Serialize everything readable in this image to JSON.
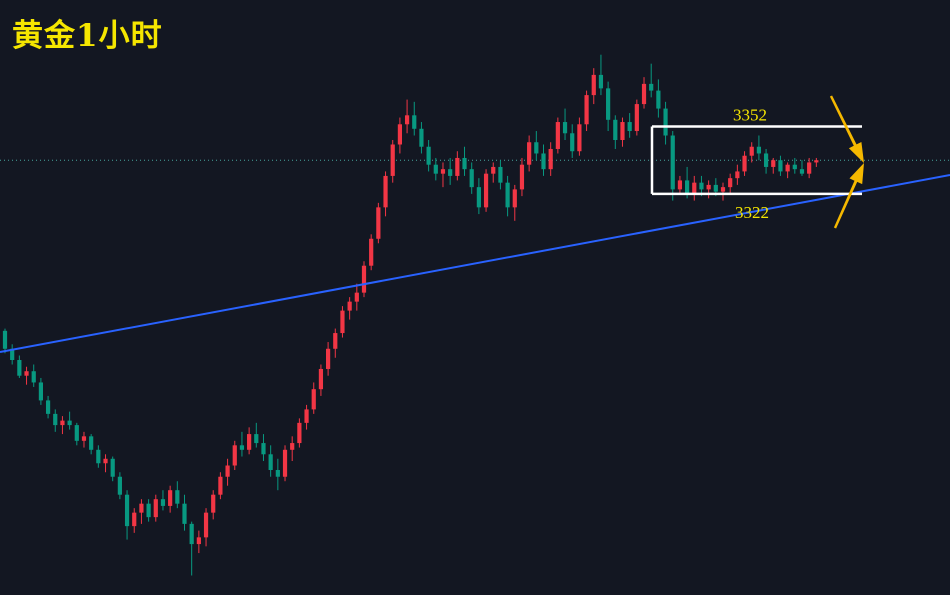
{
  "chart_data": {
    "type": "candlestick",
    "title": "黄金1小时",
    "range": {
      "upper": 3352,
      "lower": 3322,
      "upper_label": "3352",
      "lower_label": "3322"
    },
    "candle_ohlc": [
      [
        3261,
        3262,
        3251,
        3253
      ],
      [
        3253,
        3255,
        3246,
        3248
      ],
      [
        3248,
        3250,
        3240,
        3241
      ],
      [
        3241,
        3245,
        3237,
        3243
      ],
      [
        3243,
        3246,
        3236,
        3238
      ],
      [
        3238,
        3240,
        3228,
        3230
      ],
      [
        3230,
        3232,
        3222,
        3224
      ],
      [
        3224,
        3226,
        3216,
        3219
      ],
      [
        3219,
        3223,
        3215,
        3221
      ],
      [
        3221,
        3225,
        3217,
        3219
      ],
      [
        3219,
        3220,
        3210,
        3212
      ],
      [
        3212,
        3216,
        3209,
        3214
      ],
      [
        3214,
        3215,
        3206,
        3208
      ],
      [
        3208,
        3210,
        3200,
        3202
      ],
      [
        3202,
        3206,
        3198,
        3204
      ],
      [
        3204,
        3205,
        3194,
        3196
      ],
      [
        3196,
        3198,
        3186,
        3188
      ],
      [
        3188,
        3190,
        3168,
        3174
      ],
      [
        3174,
        3182,
        3171,
        3180
      ],
      [
        3180,
        3186,
        3175,
        3184
      ],
      [
        3184,
        3186,
        3176,
        3178
      ],
      [
        3178,
        3188,
        3176,
        3186
      ],
      [
        3186,
        3190,
        3181,
        3183
      ],
      [
        3183,
        3192,
        3180,
        3190
      ],
      [
        3190,
        3194,
        3182,
        3184
      ],
      [
        3184,
        3188,
        3172,
        3175
      ],
      [
        3175,
        3176,
        3152,
        3166
      ],
      [
        3166,
        3172,
        3162,
        3169
      ],
      [
        3169,
        3182,
        3165,
        3180
      ],
      [
        3180,
        3190,
        3177,
        3188
      ],
      [
        3188,
        3198,
        3186,
        3196
      ],
      [
        3196,
        3204,
        3192,
        3201
      ],
      [
        3201,
        3212,
        3199,
        3210
      ],
      [
        3210,
        3216,
        3205,
        3208
      ],
      [
        3208,
        3218,
        3206,
        3215
      ],
      [
        3215,
        3220,
        3209,
        3211
      ],
      [
        3211,
        3215,
        3203,
        3206
      ],
      [
        3206,
        3210,
        3196,
        3199
      ],
      [
        3199,
        3204,
        3190,
        3196
      ],
      [
        3196,
        3210,
        3194,
        3208
      ],
      [
        3208,
        3214,
        3203,
        3211
      ],
      [
        3211,
        3222,
        3209,
        3220
      ],
      [
        3220,
        3228,
        3217,
        3226
      ],
      [
        3226,
        3238,
        3224,
        3235
      ],
      [
        3235,
        3246,
        3232,
        3244
      ],
      [
        3244,
        3256,
        3241,
        3253
      ],
      [
        3253,
        3262,
        3249,
        3260
      ],
      [
        3260,
        3272,
        3258,
        3270
      ],
      [
        3270,
        3276,
        3266,
        3274
      ],
      [
        3274,
        3282,
        3270,
        3278
      ],
      [
        3278,
        3292,
        3276,
        3290
      ],
      [
        3290,
        3304,
        3288,
        3302
      ],
      [
        3302,
        3318,
        3300,
        3316
      ],
      [
        3316,
        3332,
        3312,
        3330
      ],
      [
        3330,
        3346,
        3327,
        3344
      ],
      [
        3344,
        3356,
        3340,
        3353
      ],
      [
        3353,
        3364,
        3349,
        3357
      ],
      [
        3357,
        3363,
        3348,
        3351
      ],
      [
        3351,
        3354,
        3340,
        3343
      ],
      [
        3343,
        3346,
        3332,
        3335
      ],
      [
        3335,
        3338,
        3328,
        3331
      ],
      [
        3331,
        3336,
        3325,
        3333
      ],
      [
        3333,
        3338,
        3326,
        3330
      ],
      [
        3330,
        3341,
        3328,
        3338
      ],
      [
        3338,
        3343,
        3330,
        3333
      ],
      [
        3333,
        3336,
        3322,
        3325
      ],
      [
        3325,
        3329,
        3313,
        3316
      ],
      [
        3316,
        3333,
        3314,
        3331
      ],
      [
        3331,
        3336,
        3327,
        3334
      ],
      [
        3334,
        3337,
        3324,
        3327
      ],
      [
        3327,
        3330,
        3312,
        3316
      ],
      [
        3316,
        3326,
        3310,
        3324
      ],
      [
        3324,
        3338,
        3321,
        3335
      ],
      [
        3335,
        3348,
        3332,
        3345
      ],
      [
        3345,
        3350,
        3337,
        3340
      ],
      [
        3340,
        3344,
        3330,
        3333
      ],
      [
        3333,
        3345,
        3330,
        3342
      ],
      [
        3342,
        3356,
        3340,
        3354
      ],
      [
        3354,
        3360,
        3346,
        3349
      ],
      [
        3349,
        3353,
        3338,
        3341
      ],
      [
        3341,
        3356,
        3339,
        3353
      ],
      [
        3353,
        3368,
        3350,
        3366
      ],
      [
        3366,
        3378,
        3362,
        3375
      ],
      [
        3375,
        3384,
        3366,
        3369
      ],
      [
        3369,
        3372,
        3350,
        3355
      ],
      [
        3355,
        3357,
        3342,
        3346
      ],
      [
        3346,
        3356,
        3343,
        3354
      ],
      [
        3354,
        3358,
        3347,
        3350
      ],
      [
        3350,
        3364,
        3348,
        3362
      ],
      [
        3362,
        3374,
        3360,
        3371
      ],
      [
        3371,
        3380,
        3365,
        3368
      ],
      [
        3368,
        3373,
        3356,
        3360
      ],
      [
        3360,
        3363,
        3344,
        3348
      ],
      [
        3348,
        3350,
        3319,
        3324
      ],
      [
        3324,
        3330,
        3322,
        3328
      ],
      [
        3328,
        3334,
        3320,
        3322
      ],
      [
        3322,
        3330,
        3319,
        3327
      ],
      [
        3327,
        3330,
        3321,
        3324
      ],
      [
        3324,
        3328,
        3320,
        3326
      ],
      [
        3326,
        3329,
        3321,
        3323
      ],
      [
        3323,
        3327,
        3319,
        3325
      ],
      [
        3325,
        3331,
        3322,
        3329
      ],
      [
        3329,
        3335,
        3326,
        3332
      ],
      [
        3332,
        3341,
        3330,
        3339
      ],
      [
        3339,
        3345,
        3336,
        3343
      ],
      [
        3343,
        3348,
        3337,
        3340
      ],
      [
        3340,
        3342,
        3331,
        3334
      ],
      [
        3334,
        3338,
        3331,
        3337
      ],
      [
        3337,
        3339,
        3330,
        3332
      ],
      [
        3332,
        3336,
        3329,
        3335
      ],
      [
        3335,
        3338,
        3331,
        3333
      ],
      [
        3333,
        3337,
        3330,
        3331
      ],
      [
        3331,
        3338,
        3329,
        3336
      ],
      [
        3336,
        3338,
        3334,
        3337
      ]
    ],
    "x_range": [
      0,
      113
    ],
    "y_range": [
      3150,
      3395
    ],
    "colors": {
      "background": "#131722",
      "up": "#f23645",
      "down": "#089981",
      "trendline": "#2962ff",
      "range_lines": "#ffffff",
      "range_labels": "#f5e600",
      "arrows": "#f5b800",
      "title": "#f5e600",
      "price_line": "#4db6ac"
    }
  }
}
